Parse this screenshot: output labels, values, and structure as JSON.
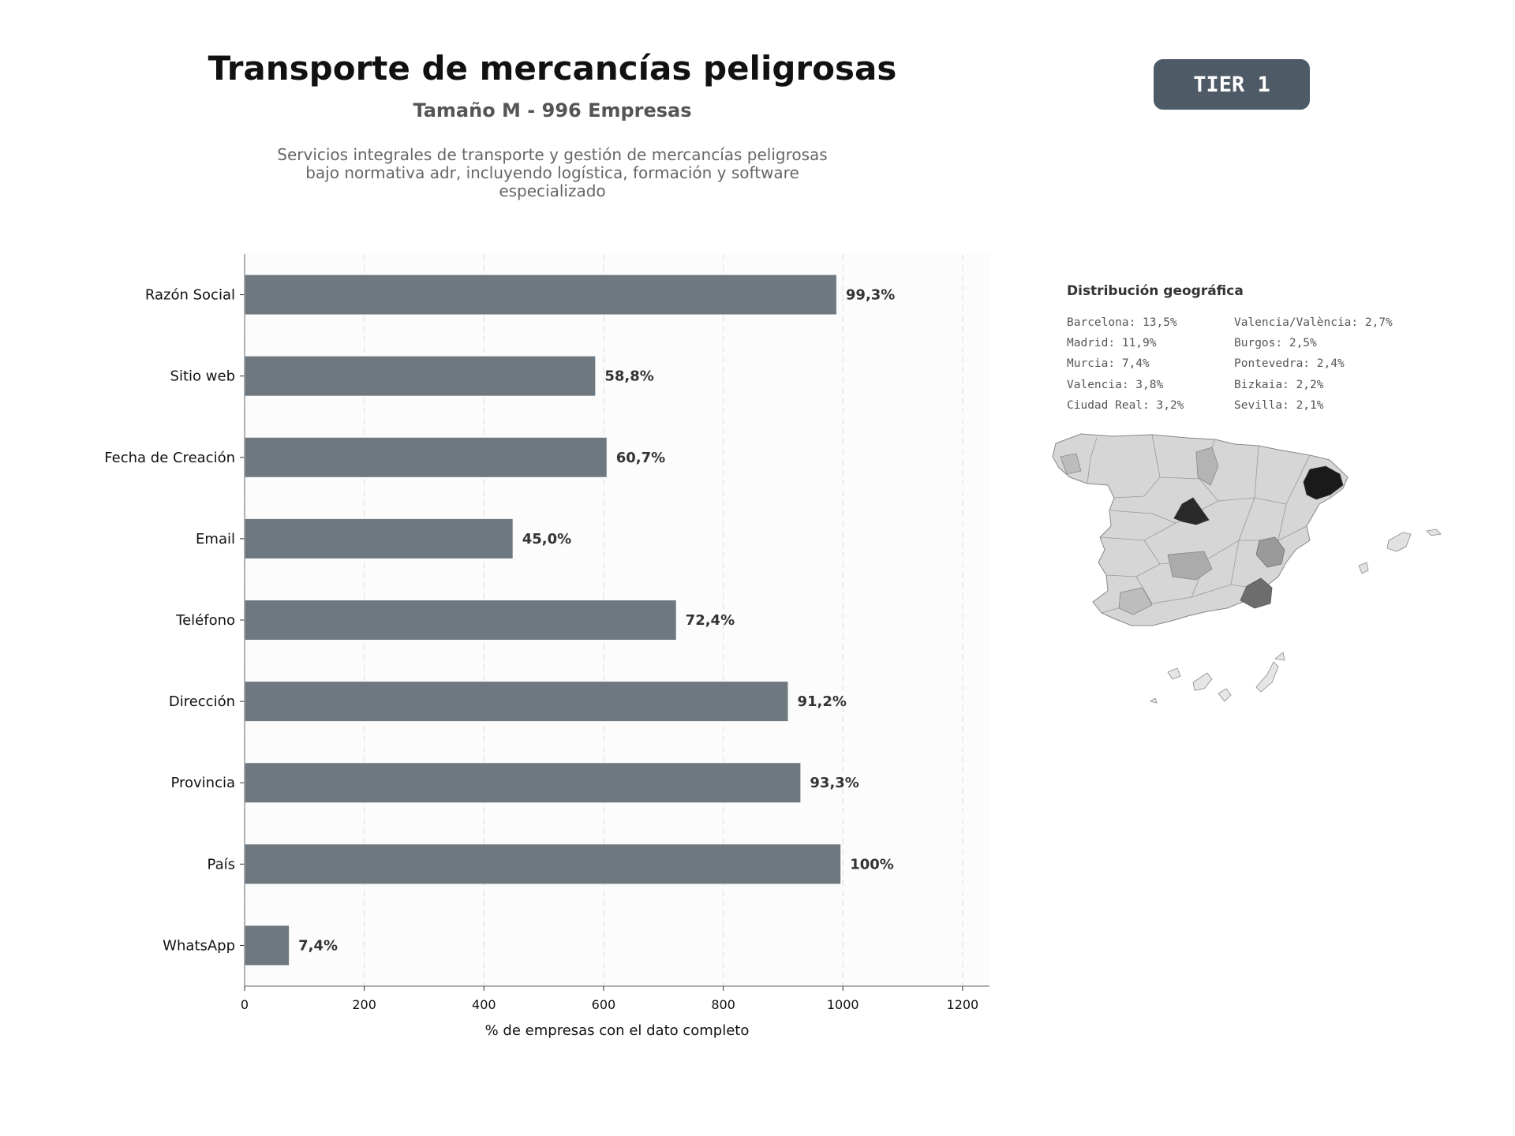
{
  "header": {
    "title": "Transporte de mercancías peligrosas",
    "subtitle": "Tamaño M - 996 Empresas",
    "description_lines": [
      "Servicios integrales de transporte y gestión de mercancías peligrosas",
      "bajo normativa adr, incluyendo logística, formación y software",
      "especializado"
    ]
  },
  "badge": {
    "label": "TIER 1"
  },
  "chart_data": {
    "type": "bar",
    "orientation": "horizontal",
    "categories": [
      "Razón Social",
      "Sitio web",
      "Fecha de Creación",
      "Email",
      "Teléfono",
      "Dirección",
      "Provincia",
      "País",
      "WhatsApp"
    ],
    "values": [
      989,
      586,
      605,
      448,
      721,
      908,
      929,
      996,
      74
    ],
    "data_labels": [
      "99,3%",
      "58,8%",
      "60,7%",
      "45,0%",
      "72,4%",
      "91,2%",
      "93,3%",
      "100%",
      "7,4%"
    ],
    "xlabel": "% de empresas con el dato completo",
    "ylabel": "",
    "xlim": [
      0,
      1245
    ],
    "xticks": [
      0,
      200,
      400,
      600,
      800,
      1000,
      1200
    ],
    "grid": "vertical-dashed",
    "bar_color": "#6e7881"
  },
  "geo": {
    "title": "Distribución geográfica",
    "left_column": [
      "Barcelona: 13,5%",
      "Madrid: 11,9%",
      "Murcia: 7,4%",
      "Valencia: 3,8%",
      "Ciudad Real: 3,2%"
    ],
    "right_column": [
      "Valencia/València: 2,7%",
      "Burgos: 2,5%",
      "Pontevedra: 2,4%",
      "Bizkaia: 2,2%",
      "Sevilla: 2,1%"
    ]
  }
}
